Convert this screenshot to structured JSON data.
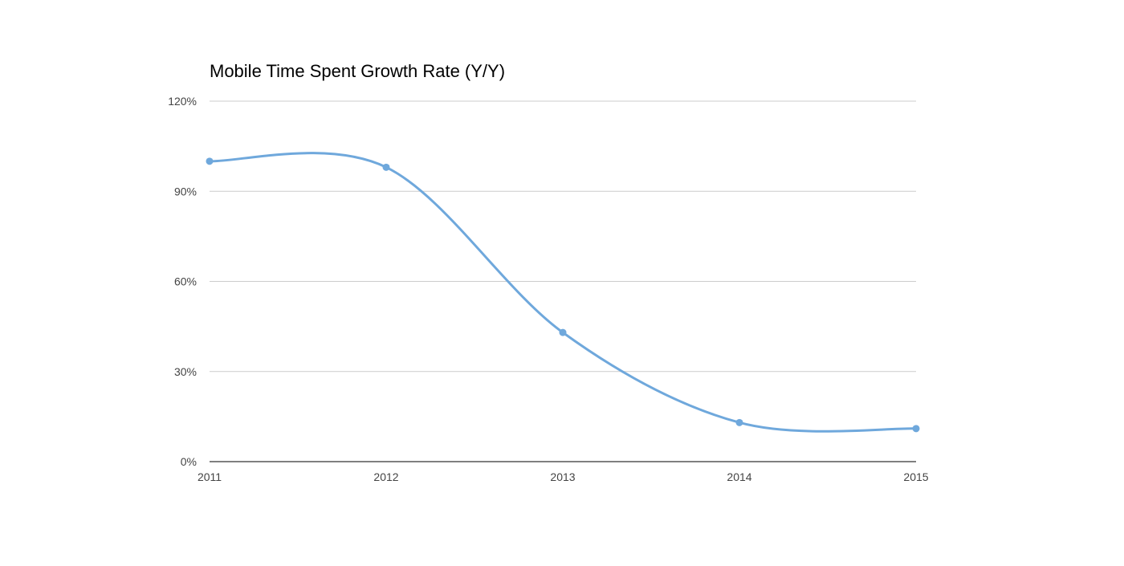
{
  "chart_data": {
    "type": "line",
    "title": "Mobile Time Spent Growth Rate (Y/Y)",
    "xlabel": "",
    "ylabel": "",
    "x": [
      "2011",
      "2012",
      "2013",
      "2014",
      "2015"
    ],
    "series": [
      {
        "values": [
          100,
          98,
          43,
          13,
          11
        ]
      }
    ],
    "y_ticks": [
      "0%",
      "30%",
      "60%",
      "90%",
      "120%"
    ],
    "ylim": [
      0,
      120
    ],
    "y_unit": "%",
    "grid": true,
    "legend": "none",
    "smooth": true,
    "colors": {
      "line": "#6fa8dc",
      "grid": "#cccccc",
      "axis": "#333333",
      "tick_text": "#444444",
      "title": "#000000"
    }
  }
}
